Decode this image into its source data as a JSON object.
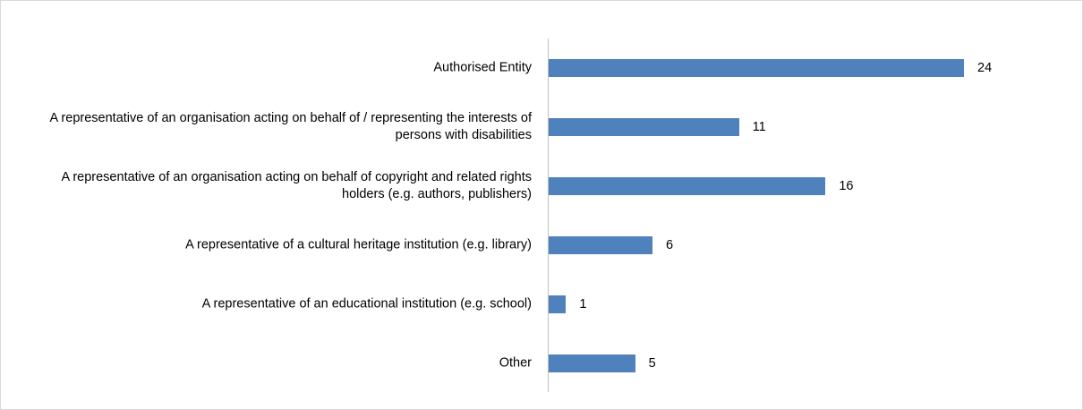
{
  "chart_data": {
    "type": "barh",
    "categories": [
      "Authorised Entity",
      "A representative of an organisation acting on behalf of / representing the interests of persons with disabilities",
      "A representative of an organisation acting on behalf of copyright and related rights holders (e.g. authors, publishers)",
      "A representative of a cultural heritage institution (e.g. library)",
      "A representative of an educational institution (e.g. school)",
      "Other"
    ],
    "values": [
      24,
      11,
      16,
      6,
      1,
      5
    ],
    "color": "#4f81bd"
  }
}
